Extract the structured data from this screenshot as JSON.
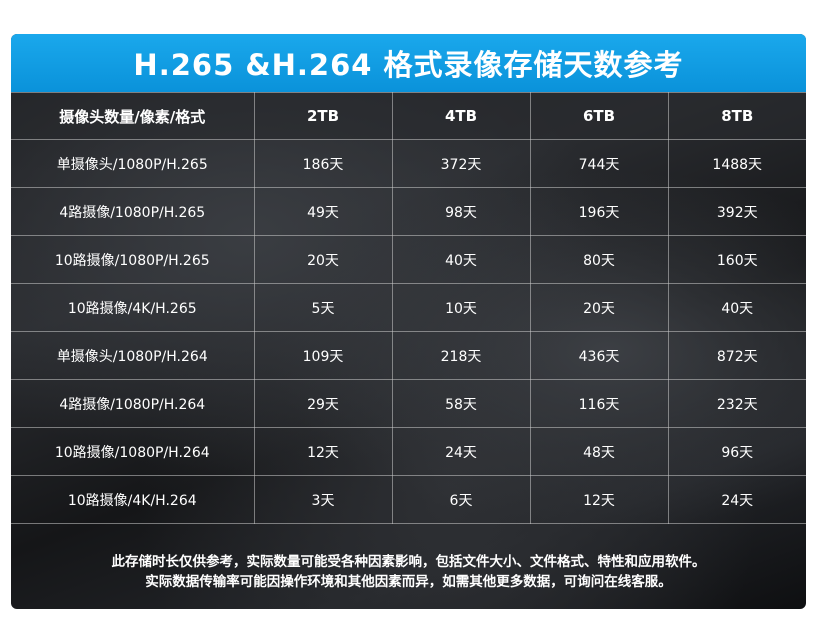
{
  "title": "H.265 &H.264 格式录像存储天数参考",
  "table": {
    "headers": [
      "摄像头数量/像素/格式",
      "2TB",
      "4TB",
      "6TB",
      "8TB"
    ],
    "rows": [
      [
        "单摄像头/1080P/H.265",
        "186天",
        "372天",
        "744天",
        "1488天"
      ],
      [
        "4路摄像/1080P/H.265",
        "49天",
        "98天",
        "196天",
        "392天"
      ],
      [
        "10路摄像/1080P/H.265",
        "20天",
        "40天",
        "80天",
        "160天"
      ],
      [
        "10路摄像/4K/H.265",
        "5天",
        "10天",
        "20天",
        "40天"
      ],
      [
        "单摄像头/1080P/H.264",
        "109天",
        "218天",
        "436天",
        "872天"
      ],
      [
        "4路摄像/1080P/H.264",
        "29天",
        "58天",
        "116天",
        "232天"
      ],
      [
        "10路摄像/1080P/H.264",
        "12天",
        "24天",
        "48天",
        "96天"
      ],
      [
        "10路摄像/4K/H.264",
        "3天",
        "6天",
        "12天",
        "24天"
      ]
    ]
  },
  "footnote": {
    "line1": "此存储时长仅供参考，实际数量可能受各种因素影响，包括文件大小、文件格式、特性和应用软件。",
    "line2": "实际数据传输率可能因操作环境和其他因素而异，如需其他更多数据，可询问在线客服。"
  },
  "colors": {
    "title_bar": "#0a92da",
    "background": "#1c1d20",
    "text": "#ffffff"
  }
}
